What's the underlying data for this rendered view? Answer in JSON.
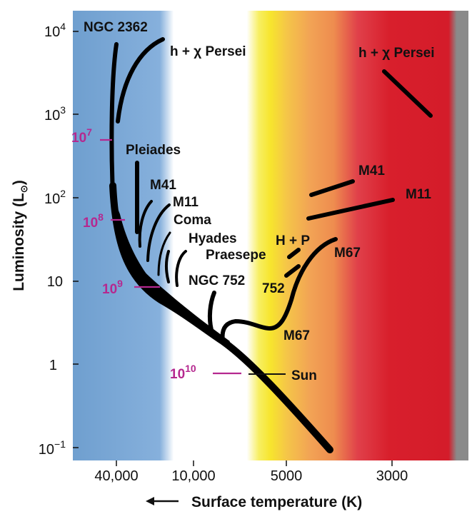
{
  "y_axis": {
    "title_prefix": "Luminosity (L",
    "title_symbol": "⊙",
    "title_suffix": ")",
    "ticks": [
      {
        "base": "10",
        "exp": "4"
      },
      {
        "base": "10",
        "exp": "3"
      },
      {
        "base": "10",
        "exp": "2"
      },
      {
        "base": "10",
        "exp": ""
      },
      {
        "base": "1",
        "exp": ""
      },
      {
        "base": "10",
        "exp": "−1"
      }
    ]
  },
  "x_axis": {
    "title": "Surface temperature (K)",
    "arrow": "⟵",
    "ticks": [
      "40,000",
      "10,000",
      "5000",
      "3000"
    ]
  },
  "clusters": {
    "ngc2362": "NGC 2362",
    "hx_persei_blue": "h + χ Persei",
    "hx_persei_red": "h + χ Persei",
    "pleiades": "Pleiades",
    "m41": "M41",
    "m11": "M11",
    "coma": "Coma",
    "hyades": "Hyades",
    "praesepe": "Praesepe",
    "ngc752": "NGC 752",
    "m41_giant": "M41",
    "m11_giant": "M11",
    "hp": "H + P",
    "m67_giant": "M67",
    "ngc752_giant": "752",
    "m67_turnoff": "M67",
    "sun": "Sun"
  },
  "ages": [
    {
      "base": "10",
      "exp": "7"
    },
    {
      "base": "10",
      "exp": "8"
    },
    {
      "base": "10",
      "exp": "9"
    },
    {
      "base": "10",
      "exp": "10"
    }
  ],
  "colors": {
    "age_marker": "#b5288f",
    "blue": "#6f9fcf",
    "yellow": "#f7e52d",
    "orange": "#f2a355",
    "red": "#d81f2c"
  }
}
